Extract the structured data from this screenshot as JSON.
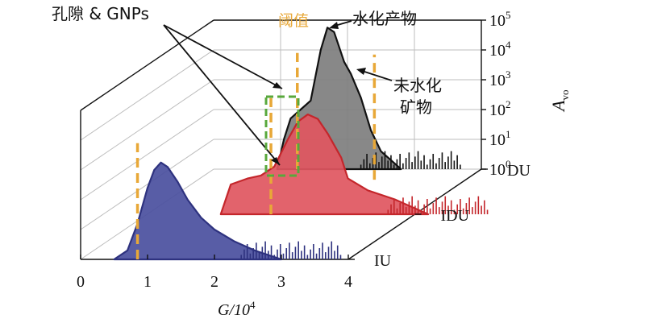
{
  "chart_data": {
    "type": "area",
    "title": "",
    "xlabel": {
      "base": "G/10",
      "sup": "4"
    },
    "ylabel": {
      "base": "A",
      "sub": "vo"
    },
    "x_ticks": [
      "0",
      "1",
      "2",
      "3",
      "4"
    ],
    "y_scale": "log",
    "y_ticks": [
      {
        "base": "10",
        "sup": "0"
      },
      {
        "base": "10",
        "sup": "1"
      },
      {
        "base": "10",
        "sup": "2"
      },
      {
        "base": "10",
        "sup": "3"
      },
      {
        "base": "10",
        "sup": "4"
      },
      {
        "base": "10",
        "sup": "5"
      }
    ],
    "depth_categories": [
      "IU",
      "IDU",
      "DU"
    ],
    "series": [
      {
        "name": "IU",
        "color": "#2e327f",
        "fill": "#4a4f9e",
        "threshold": 0.85,
        "x": [
          0.5,
          0.7,
          0.85,
          1.0,
          1.1,
          1.2,
          1.3,
          1.45,
          1.6,
          1.8,
          2.0,
          2.3,
          2.6,
          3.0
        ],
        "y": [
          0,
          0.3,
          1.2,
          2.4,
          3.0,
          3.25,
          3.1,
          2.6,
          2.0,
          1.4,
          1.0,
          0.6,
          0.3,
          0
        ]
      },
      {
        "name": "IDU",
        "color": "#c4262b",
        "fill": "#e05660",
        "threshold": 1.85,
        "x": [
          1.1,
          1.25,
          1.5,
          1.7,
          1.9,
          2.1,
          2.25,
          2.4,
          2.55,
          2.7,
          2.9,
          3.0,
          3.3,
          3.7,
          4.2
        ],
        "y": [
          0,
          1.0,
          1.2,
          1.3,
          1.6,
          2.5,
          3.1,
          3.35,
          3.2,
          2.7,
          1.9,
          1.2,
          0.8,
          0.5,
          0
        ]
      },
      {
        "name": "DU",
        "color": "#111111",
        "fill": "#7e7e7e",
        "threshold": 1.25,
        "x": [
          0.95,
          1.05,
          1.15,
          1.3,
          1.45,
          1.6,
          1.7,
          1.8,
          1.95,
          2.05,
          2.2,
          2.35,
          2.5,
          2.8
        ],
        "y": [
          0,
          1.0,
          1.7,
          2.0,
          2.3,
          4.0,
          4.75,
          4.6,
          3.6,
          3.2,
          2.4,
          1.3,
          0.6,
          0
        ]
      }
    ],
    "grid": true
  },
  "annotations": {
    "pores": "孔隙 & GNPs",
    "threshold": "阈值",
    "hydration": "水化产物",
    "unhydrated_1": "未水化",
    "unhydrated_2": "矿物"
  },
  "colors": {
    "threshold": "#e8a838",
    "pores_box": "#58a83c"
  }
}
